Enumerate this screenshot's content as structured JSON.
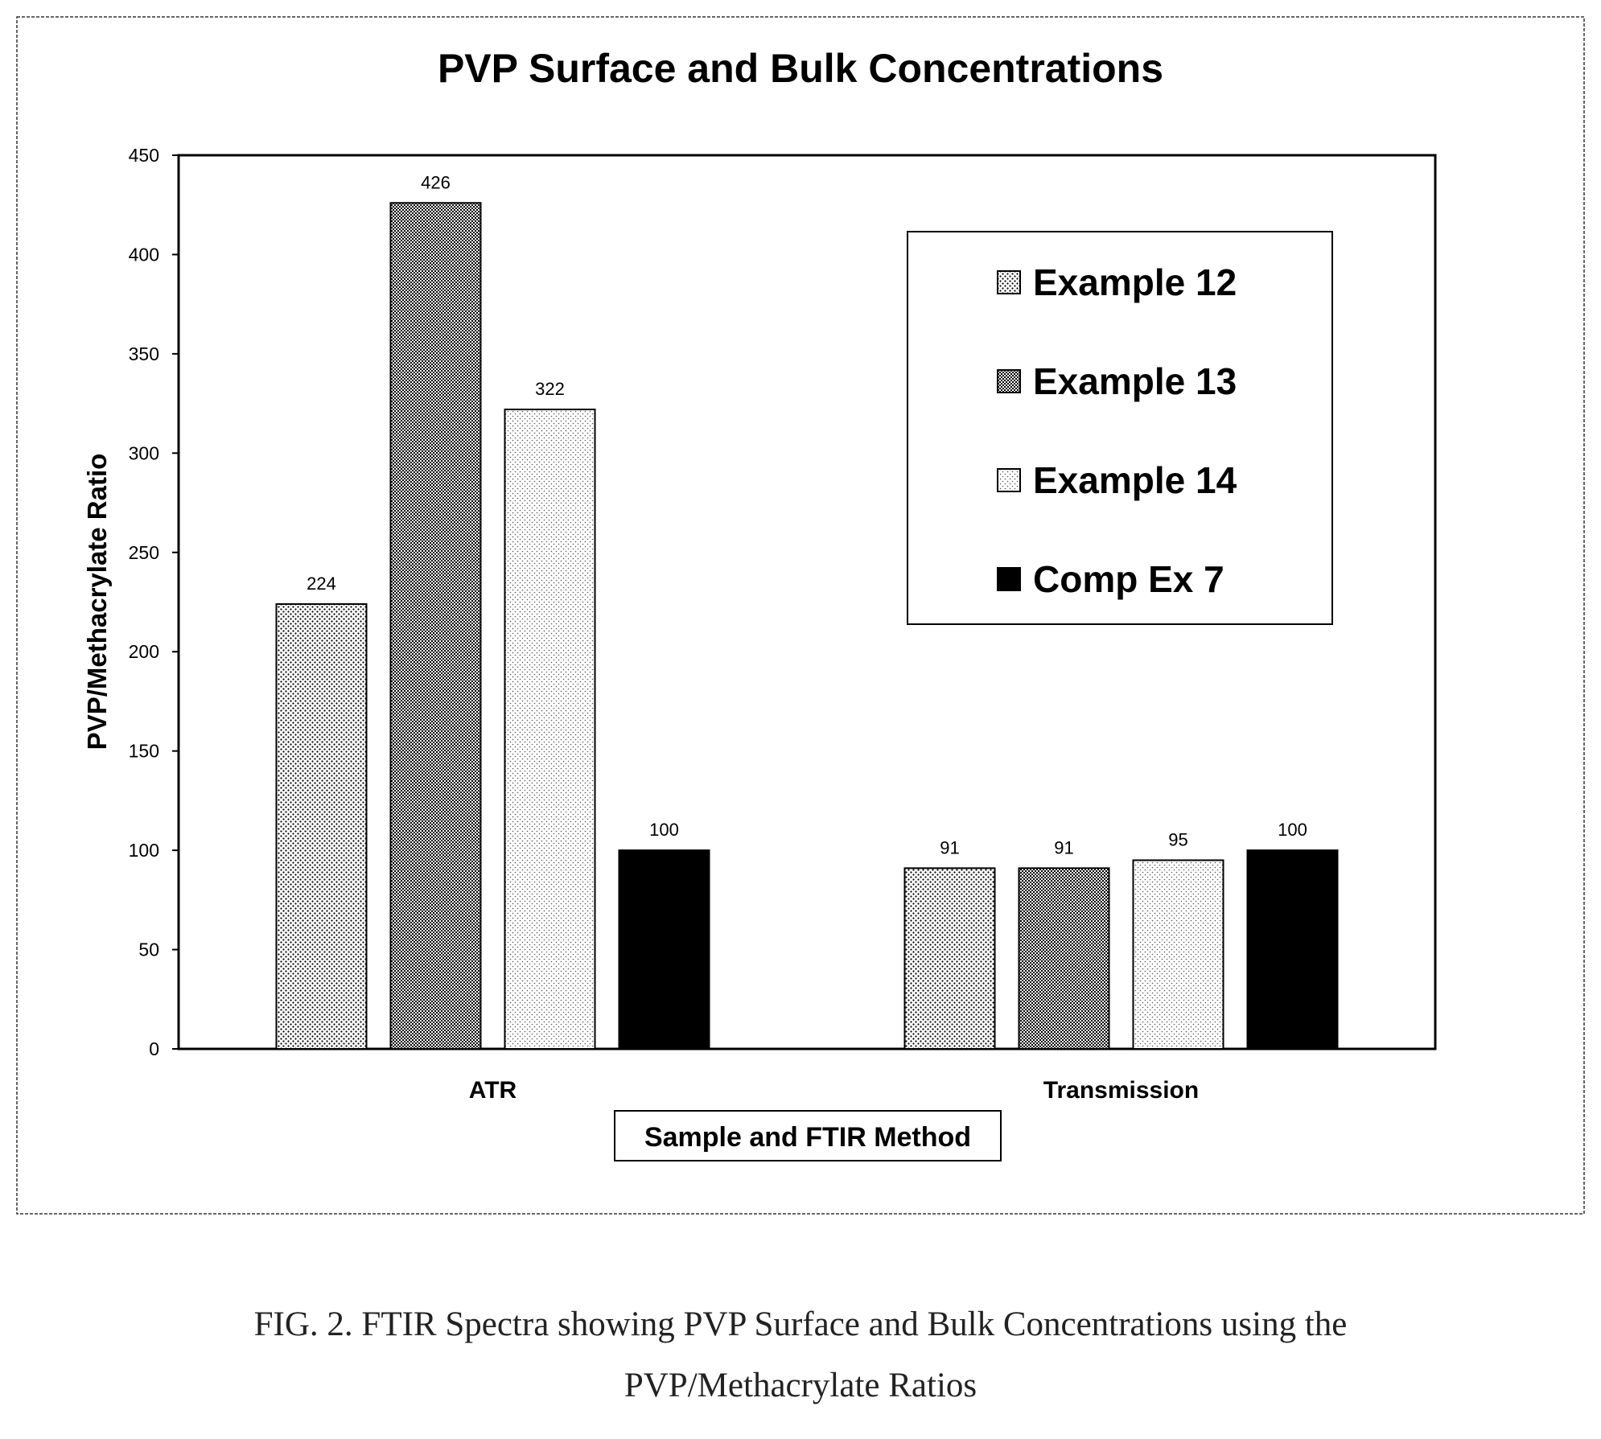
{
  "chart_data": {
    "type": "bar",
    "title": "PVP Surface and Bulk Concentrations",
    "xlabel": "Sample and FTIR Method",
    "ylabel": "PVP/Methacrylate Ratio",
    "categories": [
      "ATR",
      "Transmission"
    ],
    "ylim": [
      0,
      450
    ],
    "yticks": [
      0,
      50,
      100,
      150,
      200,
      250,
      300,
      350,
      400,
      450
    ],
    "grid": false,
    "legend_position": "top-right",
    "series": [
      {
        "name": "Example 12",
        "values": [
          224,
          91
        ],
        "pattern": "dots-fine",
        "color": "#000000"
      },
      {
        "name": "Example 13",
        "values": [
          426,
          91
        ],
        "pattern": "dots-dense",
        "color": "#000000"
      },
      {
        "name": "Example 14",
        "values": [
          322,
          95
        ],
        "pattern": "dots-light",
        "color": "#000000"
      },
      {
        "name": "Comp Ex 7",
        "values": [
          100,
          100
        ],
        "pattern": "solid",
        "color": "#000000"
      }
    ],
    "data_labels": [
      [
        "224",
        "91"
      ],
      [
        "426",
        "91"
      ],
      [
        "322",
        "95"
      ],
      [
        "100",
        "100"
      ]
    ]
  },
  "caption": {
    "line1": "FIG. 2. FTIR Spectra showing PVP Surface and Bulk Concentrations using the",
    "line2": "PVP/Methacrylate Ratios"
  }
}
